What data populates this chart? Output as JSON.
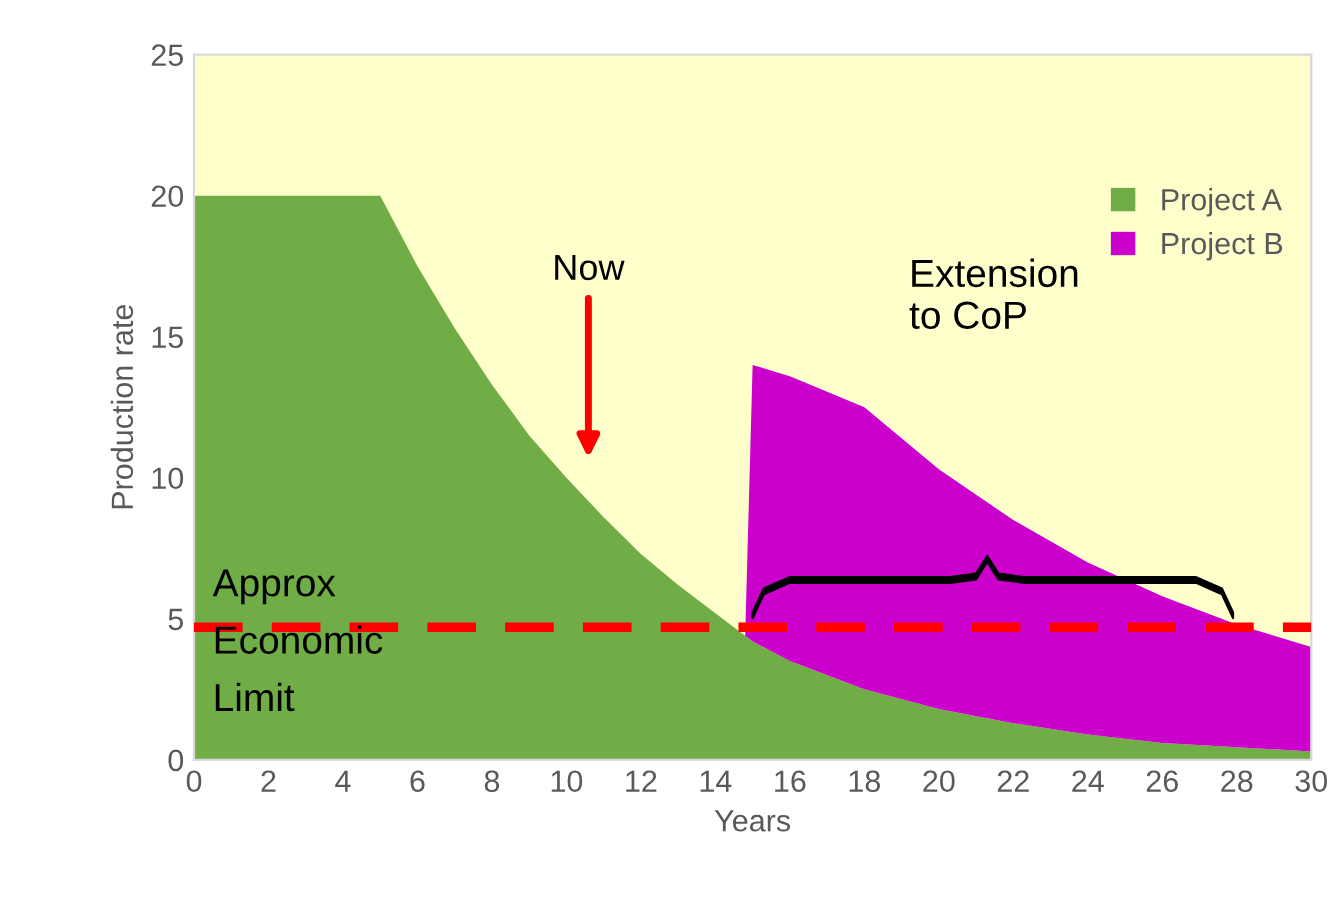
{
  "chart_data": {
    "type": "area",
    "stacked": true,
    "xlabel": "Years",
    "ylabel": "Production rate",
    "x": [
      0,
      5,
      6,
      7,
      8,
      9,
      10,
      11,
      12,
      13,
      14,
      14.8,
      15,
      16,
      18,
      20,
      22,
      24,
      26,
      28,
      30
    ],
    "series": [
      {
        "name": "Project A",
        "color": "#70ad47",
        "values": [
          20,
          20,
          17.5,
          15.3,
          13.3,
          11.5,
          10,
          8.6,
          7.3,
          6.2,
          5.2,
          4.4,
          4.2,
          3.5,
          2.5,
          1.8,
          1.3,
          0.9,
          0.6,
          0.45,
          0.3
        ]
      },
      {
        "name": "Project B",
        "color": "#cc00cc",
        "values": [
          null,
          null,
          null,
          null,
          null,
          null,
          null,
          null,
          null,
          null,
          null,
          0,
          9.8,
          10.1,
          10.0,
          8.5,
          7.2,
          6.1,
          5.2,
          4.35,
          3.7
        ]
      }
    ],
    "xlim": [
      0,
      30
    ],
    "xticks": [
      0,
      2,
      4,
      6,
      8,
      10,
      12,
      14,
      16,
      18,
      20,
      22,
      24,
      26,
      28,
      30
    ],
    "ylim": [
      0,
      25
    ],
    "yticks": [
      0,
      5,
      10,
      15,
      20,
      25
    ],
    "ref_lines": [
      {
        "axis": "y",
        "value": 4.7,
        "label": "Approx\nEconomic\nLimit",
        "color": "#ff0000",
        "line_style": "dashed"
      }
    ],
    "annotations": [
      "Now",
      "Extension\nto CoP"
    ],
    "legend": "top right",
    "grid": false
  }
}
